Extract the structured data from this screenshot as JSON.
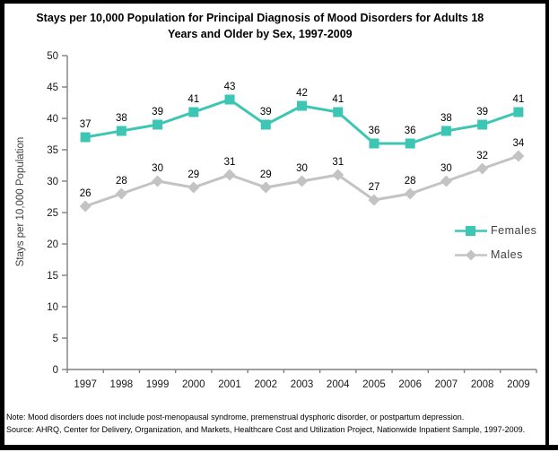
{
  "window": {
    "background": "#ffffff",
    "border_color": "#000000"
  },
  "chart_data": {
    "type": "line",
    "title": "Stays per 10,000 Population for Principal Diagnosis of Mood Disorders for Adults 18 Years and Older by Sex, 1997-2009",
    "ylabel": "Stays per 10,000 Population",
    "xlabel": "",
    "ylim": [
      0,
      50
    ],
    "yticks": [
      0,
      5,
      10,
      15,
      20,
      25,
      30,
      35,
      40,
      45,
      50
    ],
    "grid": false,
    "legend_position": "middle-right",
    "axis_color": "#808080",
    "label_color": "#000000",
    "categories": [
      "1997",
      "1998",
      "1999",
      "2000",
      "2001",
      "2002",
      "2003",
      "2004",
      "2005",
      "2006",
      "2007",
      "2008",
      "2009"
    ],
    "series": [
      {
        "name": "Females",
        "color": "#3EC6B4",
        "marker": "square",
        "values": [
          37,
          38,
          39,
          41,
          43,
          39,
          42,
          41,
          36,
          36,
          38,
          39,
          41
        ]
      },
      {
        "name": "Males",
        "color": "#C3C3C3",
        "marker": "diamond",
        "values": [
          26,
          28,
          30,
          29,
          31,
          29,
          30,
          31,
          27,
          28,
          30,
          32,
          34
        ]
      }
    ]
  },
  "footnotes": {
    "note": "Note: Mood disorders does not include post-menopausal syndrome, premenstrual dysphoric disorder, or postpartum depression.",
    "source": "Source: AHRQ, Center for Delivery, Organization, and Markets, Healthcare Cost and Utilization Project, Nationwide Inpatient Sample, 1997-2009."
  }
}
